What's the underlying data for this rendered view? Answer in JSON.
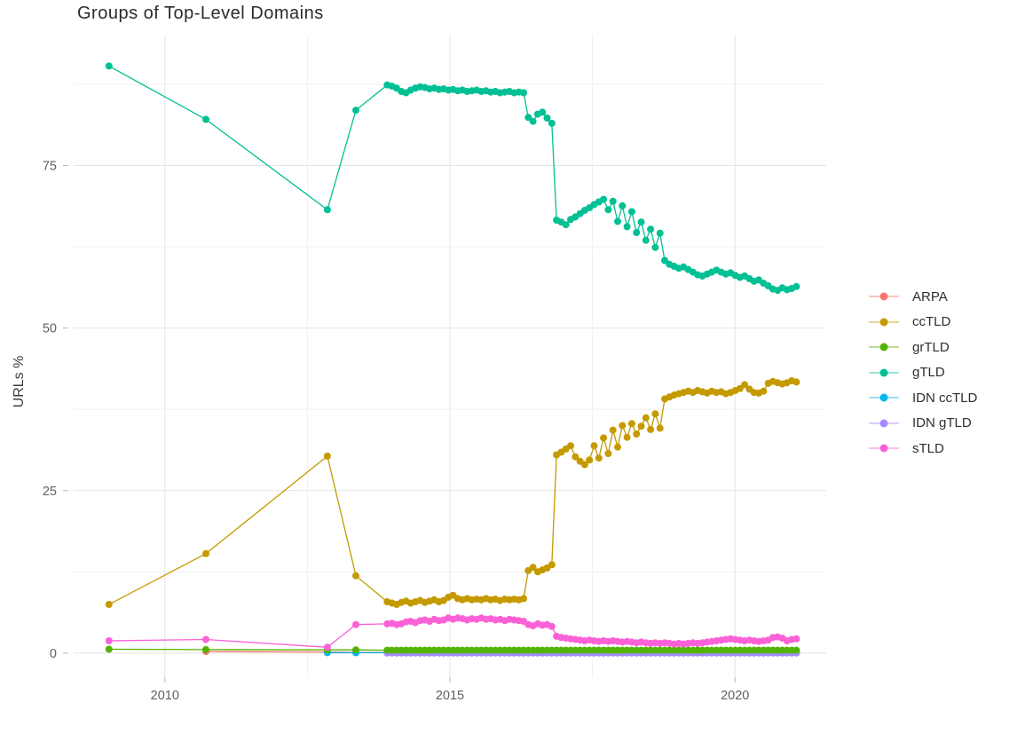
{
  "chart_data": {
    "type": "line",
    "points_visible": true,
    "title": "Groups of Top-Level Domains",
    "xlabel": "",
    "ylabel": "URLs %",
    "grid": true,
    "legend_position": "right",
    "x_axis": {
      "range": [
        2008.4,
        2021.6
      ],
      "ticks": [
        {
          "value": 2010,
          "label": "2010"
        },
        {
          "value": 2015,
          "label": "2015"
        },
        {
          "value": 2020,
          "label": "2020"
        }
      ],
      "minor": [
        2012.5,
        2017.5
      ]
    },
    "y_axis": {
      "range": [
        -3.7,
        95
      ],
      "ticks": [
        {
          "value": 0,
          "label": "0"
        },
        {
          "value": 25,
          "label": "25"
        },
        {
          "value": 50,
          "label": "50"
        },
        {
          "value": 75,
          "label": "75"
        }
      ],
      "minor": [
        12.5,
        37.5,
        62.5,
        87.5
      ]
    },
    "legend": [
      "ARPA",
      "ccTLD",
      "grTLD",
      "gTLD",
      "IDN ccTLD",
      "IDN gTLD",
      "sTLD"
    ],
    "series": [
      {
        "name": "ARPA",
        "color": "#F8766D",
        "points": [
          [
            2010.72,
            0.25
          ],
          [
            2012.85,
            0.18
          ],
          [
            2013.35,
            0.12
          ]
        ],
        "dense": {
          "x0": 2013.9,
          "dx": 0.0825,
          "n": 88,
          "fill": 0.1
        }
      },
      {
        "name": "IDN ccTLD",
        "color": "#00B6EB",
        "points": [
          [
            2012.85,
            0.07
          ],
          [
            2013.35,
            0.07
          ]
        ],
        "dense": {
          "x0": 2013.9,
          "dx": 0.0825,
          "n": 88,
          "fill": 0.07
        }
      },
      {
        "name": "IDN gTLD",
        "color": "#A58AFF",
        "points": [],
        "dense": {
          "x0": 2013.9,
          "dx": 0.0825,
          "n": 88,
          "fill": 0.02
        }
      },
      {
        "name": "ccTLD",
        "color": "#C49A00",
        "points": [
          [
            2009.02,
            7.5
          ],
          [
            2010.72,
            15.3
          ],
          [
            2012.85,
            30.3
          ],
          [
            2013.35,
            11.9
          ]
        ],
        "dense": {
          "x0": 2013.9,
          "dx": 0.0825,
          "n": 88,
          "values": [
            7.9,
            7.7,
            7.5,
            7.8,
            8.0,
            7.7,
            7.9,
            8.1,
            7.8,
            8.0,
            8.2,
            7.9,
            8.1,
            8.6,
            8.9,
            8.4,
            8.2,
            8.4,
            8.2,
            8.3,
            8.2,
            8.4,
            8.2,
            8.3,
            8.1,
            8.3,
            8.2,
            8.3,
            8.2,
            8.4,
            12.7,
            13.2,
            12.5,
            12.8,
            13.1,
            13.6,
            30.5,
            30.9,
            31.4,
            31.9,
            30.2,
            29.5,
            29.0,
            29.7,
            31.9,
            30.0,
            33.1,
            30.7,
            34.3,
            31.7,
            35.0,
            33.2,
            35.3,
            33.7,
            34.9,
            36.2,
            34.4,
            36.8,
            34.6,
            39.1,
            39.4,
            39.7,
            39.9,
            40.1,
            40.3,
            40.1,
            40.4,
            40.2,
            40.0,
            40.3,
            40.1,
            40.2,
            39.9,
            40.1,
            40.4,
            40.7,
            41.3,
            40.6,
            40.1,
            40.0,
            40.3,
            41.5,
            41.8,
            41.6,
            41.4,
            41.6,
            41.9,
            41.7
          ]
        }
      },
      {
        "name": "gTLD",
        "color": "#00C094",
        "points": [
          [
            2009.02,
            90.3
          ],
          [
            2010.72,
            82.1
          ],
          [
            2012.85,
            68.2
          ],
          [
            2013.35,
            83.5
          ]
        ],
        "dense": {
          "x0": 2013.9,
          "dx": 0.0825,
          "n": 88,
          "values": [
            87.4,
            87.2,
            86.9,
            86.4,
            86.2,
            86.6,
            86.9,
            87.1,
            87.0,
            86.8,
            86.9,
            86.7,
            86.8,
            86.6,
            86.7,
            86.5,
            86.6,
            86.4,
            86.5,
            86.6,
            86.4,
            86.5,
            86.3,
            86.4,
            86.2,
            86.3,
            86.4,
            86.2,
            86.3,
            86.2,
            82.4,
            81.8,
            82.9,
            83.2,
            82.3,
            81.5,
            66.6,
            66.3,
            65.9,
            66.7,
            67.1,
            67.6,
            68.1,
            68.5,
            69.0,
            69.4,
            69.8,
            68.2,
            69.5,
            66.4,
            68.8,
            65.6,
            67.9,
            64.7,
            66.3,
            63.5,
            65.2,
            62.4,
            64.6,
            60.4,
            59.8,
            59.5,
            59.2,
            59.4,
            59.0,
            58.6,
            58.2,
            58.0,
            58.3,
            58.6,
            58.9,
            58.6,
            58.3,
            58.5,
            58.1,
            57.8,
            58.0,
            57.6,
            57.2,
            57.4,
            56.9,
            56.5,
            56.0,
            55.8,
            56.2,
            55.9,
            56.1,
            56.4
          ]
        }
      },
      {
        "name": "grTLD",
        "color": "#53B400",
        "points": [
          [
            2009.02,
            0.6
          ],
          [
            2010.72,
            0.55
          ],
          [
            2012.85,
            0.5
          ],
          [
            2013.35,
            0.5
          ]
        ],
        "dense": {
          "x0": 2013.9,
          "dx": 0.0825,
          "n": 88,
          "fill": 0.45
        }
      },
      {
        "name": "sTLD",
        "color": "#FB61D7",
        "points": [
          [
            2009.02,
            1.9
          ],
          [
            2010.72,
            2.1
          ],
          [
            2012.85,
            0.9
          ],
          [
            2013.35,
            4.4
          ]
        ],
        "dense": {
          "x0": 2013.9,
          "dx": 0.0825,
          "n": 88,
          "values": [
            4.5,
            4.6,
            4.4,
            4.5,
            4.8,
            4.9,
            4.7,
            5.0,
            5.1,
            4.9,
            5.2,
            5.0,
            5.1,
            5.4,
            5.2,
            5.4,
            5.3,
            5.1,
            5.3,
            5.2,
            5.4,
            5.2,
            5.3,
            5.1,
            5.2,
            5.0,
            5.2,
            5.1,
            5.0,
            4.9,
            4.4,
            4.2,
            4.5,
            4.3,
            4.4,
            4.1,
            2.6,
            2.4,
            2.3,
            2.2,
            2.1,
            2.0,
            1.9,
            2.0,
            1.9,
            1.8,
            1.9,
            1.8,
            1.9,
            1.8,
            1.7,
            1.8,
            1.7,
            1.6,
            1.7,
            1.6,
            1.5,
            1.6,
            1.5,
            1.6,
            1.5,
            1.4,
            1.5,
            1.4,
            1.5,
            1.6,
            1.5,
            1.6,
            1.7,
            1.8,
            1.9,
            2.0,
            2.1,
            2.2,
            2.1,
            2.0,
            1.9,
            2.0,
            1.9,
            1.8,
            1.9,
            2.0,
            2.4,
            2.5,
            2.3,
            1.9,
            2.1,
            2.2
          ]
        }
      }
    ]
  },
  "style": {
    "grid_major_color": "#e4e4e4",
    "grid_minor_color": "#f0f0f0",
    "tick_color": "#b8b8b8",
    "tick_label_color": "#5f5f5f",
    "point_radius": 4,
    "line_width": 1.3
  }
}
